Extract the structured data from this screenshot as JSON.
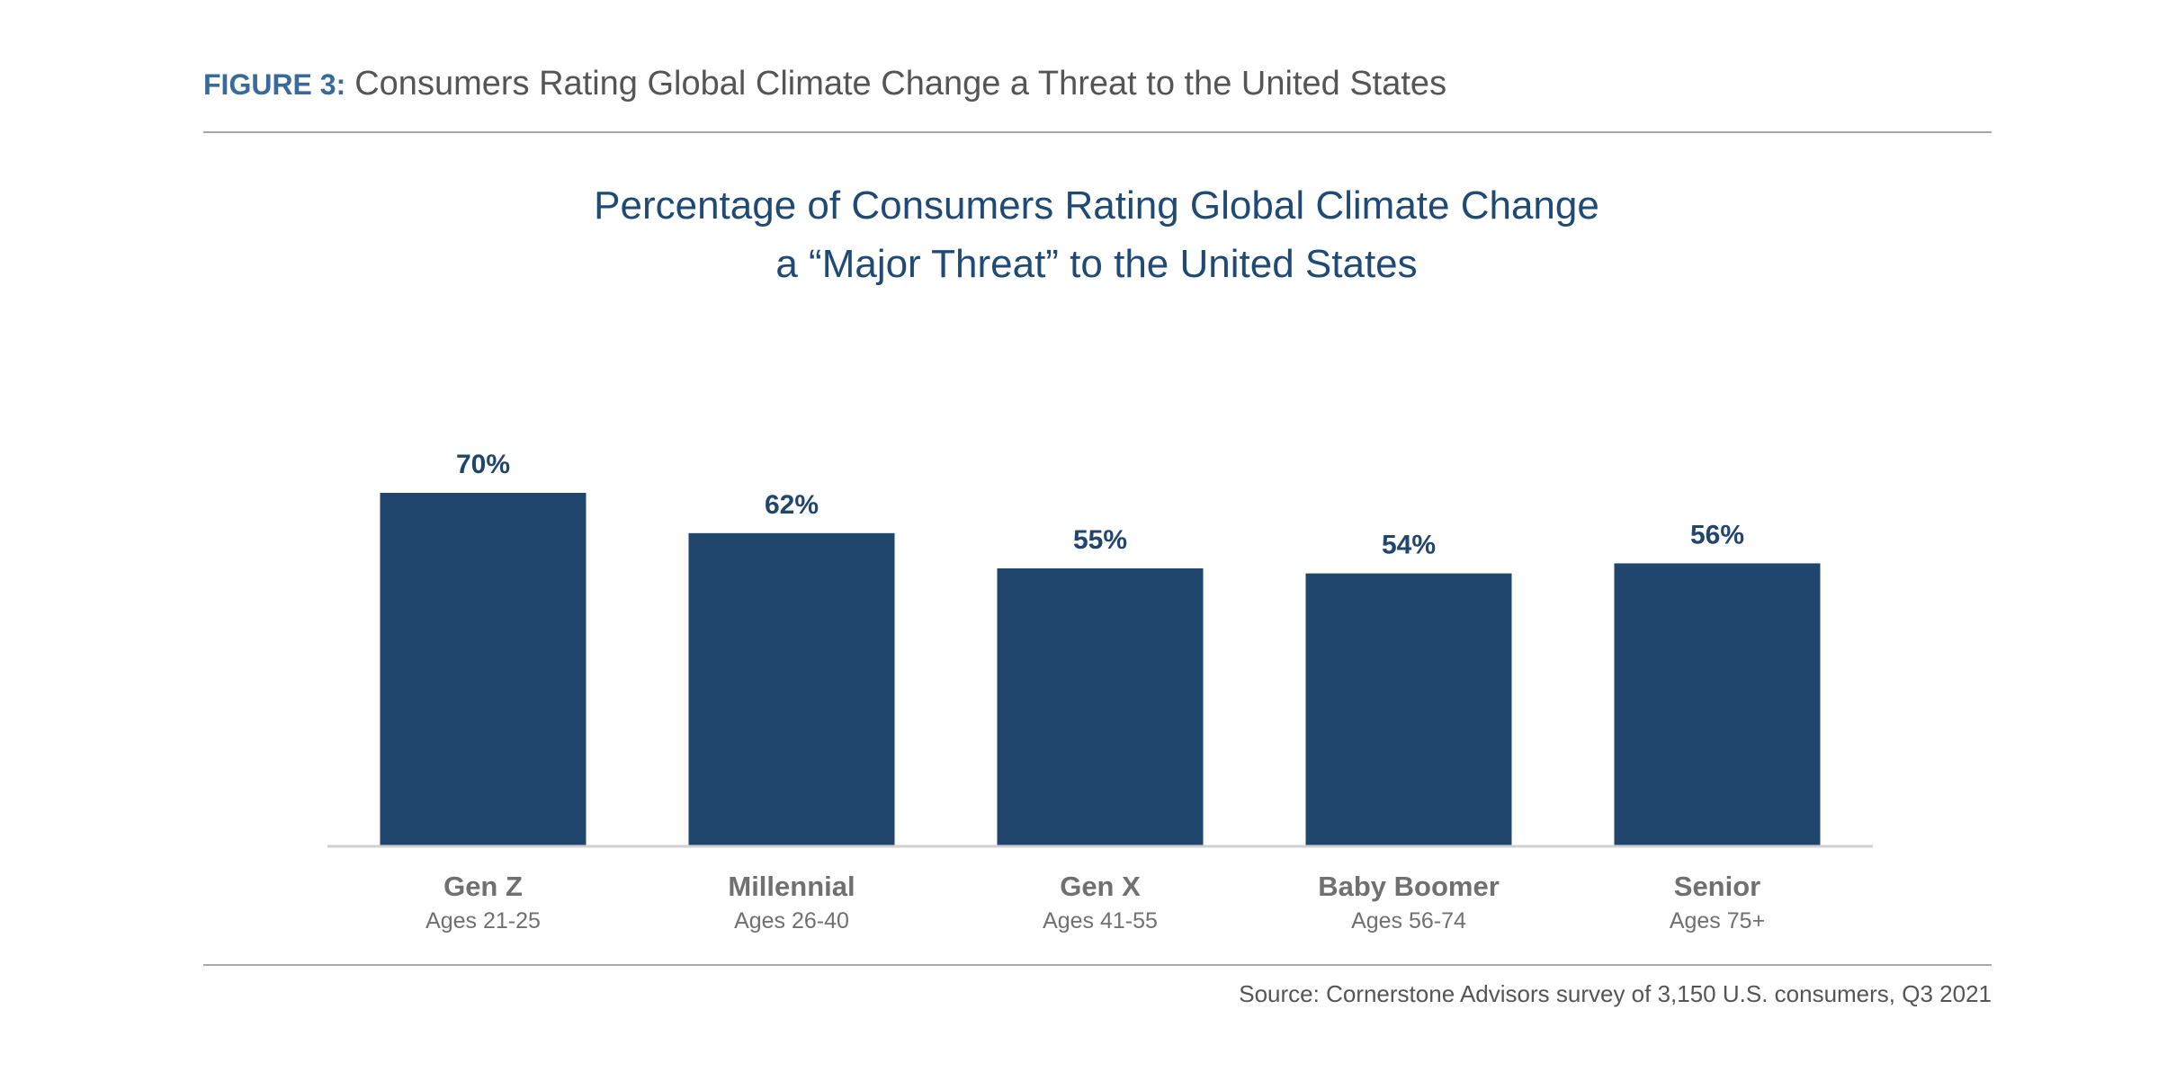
{
  "header": {
    "figure_label": "FIGURE 3:",
    "figure_title": "Consumers Rating Global Climate Change a Threat to the United States"
  },
  "chart_data": {
    "type": "bar",
    "title_lines": [
      "Percentage of Consumers Rating Global Climate Change",
      "a “Major Threat” to the United States"
    ],
    "categories": [
      "Gen Z",
      "Millennial",
      "Gen X",
      "Baby Boomer",
      "Senior"
    ],
    "subcategories": [
      "Ages 21-25",
      "Ages 26-40",
      "Ages 41-55",
      "Ages 56-74",
      "Ages 75+"
    ],
    "values": [
      70,
      62,
      55,
      54,
      56
    ],
    "data_labels": [
      "70%",
      "62%",
      "55%",
      "54%",
      "56%"
    ],
    "ylim": [
      0,
      100
    ],
    "grid": false,
    "legend": false,
    "bar_color": "#21466d",
    "label_color": "#21466d",
    "axis_color": "#d0d0d0",
    "category_color": "#707070"
  },
  "source": "Source: Cornerstone Advisors survey of 3,150 U.S. consumers, Q3 2021"
}
